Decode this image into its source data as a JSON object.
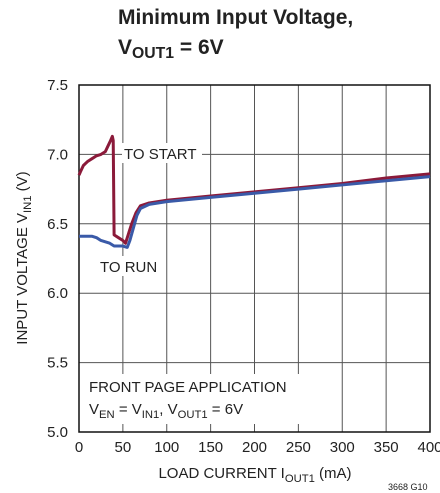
{
  "chart_data": {
    "type": "line",
    "title": "Minimum Input Voltage,",
    "subtitle_parts": [
      "V",
      "OUT1",
      " = 6V"
    ],
    "xlabel_parts": [
      "LOAD CURRENT I",
      "OUT1",
      " (mA)"
    ],
    "ylabel_parts": [
      "INPUT VOLTAGE V",
      "IN1",
      " (V)"
    ],
    "annotations": {
      "start": "TO START",
      "run": "TO RUN",
      "app": "FRONT PAGE APPLICATION",
      "cond_parts": [
        "V",
        "EN",
        " = V",
        "IN1",
        ", V",
        "OUT1",
        " = 6V"
      ]
    },
    "footnote": "3668 G10",
    "xlim": [
      0,
      400
    ],
    "xticks": [
      0,
      50,
      100,
      150,
      200,
      250,
      300,
      350,
      400
    ],
    "ylim": [
      5,
      7.5
    ],
    "yticks": [
      {
        "value": 5,
        "label": "5.0"
      },
      5.5,
      {
        "value": 6,
        "label": "6.0"
      },
      6.5,
      {
        "value": 7,
        "label": "7.0"
      },
      7.5
    ],
    "grid": true,
    "series": [
      {
        "color": "#8b1a3a",
        "x": [
          0,
          2,
          5,
          10,
          15,
          20,
          25,
          30,
          33,
          36,
          38,
          39,
          40,
          45,
          50,
          53,
          56,
          60,
          65,
          70,
          80,
          100,
          150,
          200,
          250,
          300,
          350,
          400
        ],
        "values": [
          6.85,
          6.88,
          6.92,
          6.95,
          6.97,
          6.99,
          7.0,
          7.02,
          7.06,
          7.1,
          7.13,
          7.1,
          6.42,
          6.4,
          6.38,
          6.36,
          6.42,
          6.5,
          6.58,
          6.63,
          6.65,
          6.67,
          6.7,
          6.73,
          6.76,
          6.79,
          6.83,
          6.86
        ]
      },
      {
        "color": "#3a5aa8",
        "x": [
          0,
          15,
          20,
          25,
          30,
          35,
          40,
          45,
          50,
          55,
          58,
          62,
          66,
          70,
          80,
          100,
          150,
          200,
          250,
          300,
          350,
          400
        ],
        "values": [
          6.41,
          6.41,
          6.4,
          6.38,
          6.37,
          6.36,
          6.34,
          6.34,
          6.34,
          6.33,
          6.38,
          6.47,
          6.56,
          6.61,
          6.64,
          6.66,
          6.69,
          6.72,
          6.75,
          6.78,
          6.81,
          6.84
        ]
      }
    ]
  }
}
